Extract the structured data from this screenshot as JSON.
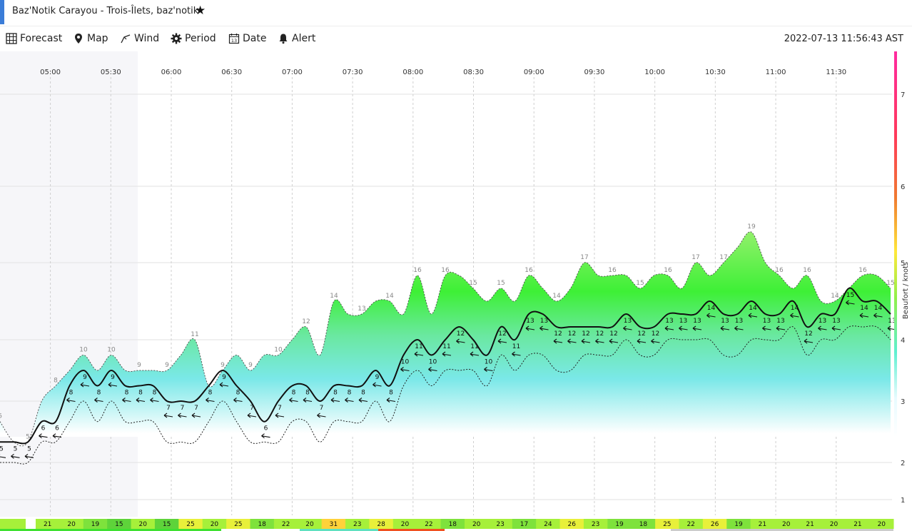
{
  "window": {
    "title": "Baz'Notik Carayou - Trois-Îlets, baz'notik",
    "star_icon": "star-icon"
  },
  "toolbar": {
    "items": [
      {
        "label": "Forecast",
        "icon": "grid-icon"
      },
      {
        "label": "Map",
        "icon": "map-pin-icon"
      },
      {
        "label": "Wind",
        "icon": "wind-icon"
      },
      {
        "label": "Period",
        "icon": "gear-icon"
      },
      {
        "label": "Date",
        "icon": "calendar-icon"
      },
      {
        "label": "Alert",
        "icon": "bell-icon"
      }
    ],
    "timestamp": "2022-07-13 11:56:43 AST"
  },
  "chart_data": {
    "type": "area",
    "time_labels": [
      "05:00",
      "05:30",
      "06:00",
      "06:30",
      "07:00",
      "07:30",
      "08:00",
      "08:30",
      "09:00",
      "09:30",
      "10:00",
      "10:30",
      "11:00",
      "11:30"
    ],
    "beaufort_scale": [
      "1",
      "2",
      "3",
      "4",
      "5",
      "6",
      "7"
    ],
    "axis_title": "Beaufort / knots",
    "x_start": "04:35",
    "x_end": "11:57",
    "night_shade_end": "05:40",
    "avg_knots": [
      5,
      5,
      5,
      6,
      6,
      8,
      9,
      8,
      9,
      8,
      8,
      8,
      7,
      7,
      7,
      8,
      9,
      8,
      7,
      6,
      7,
      8,
      8,
      7,
      8,
      8,
      8,
      9,
      8,
      10,
      11,
      10,
      11,
      12,
      11,
      10,
      12,
      11,
      13,
      13,
      12,
      12,
      12,
      12,
      12,
      13,
      12,
      12,
      13,
      13,
      13,
      14,
      13,
      13,
      14,
      13,
      13,
      14,
      12,
      13,
      13,
      15,
      14,
      14,
      13
    ],
    "gust_knots": [
      6,
      5,
      5,
      7,
      8,
      9,
      10,
      9,
      10,
      9,
      9,
      9,
      9,
      10,
      11,
      8,
      9,
      10,
      9,
      10,
      10,
      11,
      12,
      10,
      14,
      13,
      13,
      14,
      14,
      13,
      16,
      13,
      16,
      16,
      15,
      14,
      15,
      14,
      16,
      15,
      14,
      15,
      17,
      16,
      16,
      16,
      15,
      16,
      16,
      15,
      17,
      16,
      17,
      18,
      19,
      17,
      16,
      15,
      16,
      14,
      14,
      15,
      16,
      16,
      15
    ],
    "lull_knots": [
      4,
      4,
      4,
      5,
      5,
      6,
      7,
      6,
      7,
      6,
      6,
      6,
      5,
      5,
      5,
      6,
      7,
      6,
      5,
      5,
      5,
      6,
      6,
      5,
      6,
      6,
      6,
      7,
      6,
      8,
      9,
      8,
      9,
      9,
      9,
      8,
      10,
      9,
      10,
      10,
      9,
      9,
      10,
      10,
      10,
      11,
      10,
      10,
      11,
      11,
      11,
      11,
      10,
      10,
      11,
      11,
      11,
      12,
      10,
      11,
      11,
      12,
      12,
      12,
      11
    ],
    "gust_strip": [
      "21",
      "20",
      "19",
      "15",
      "20",
      "15",
      "25",
      "20",
      "25",
      "18",
      "22",
      "20",
      "31",
      "23",
      "28",
      "20",
      "22",
      "18",
      "20",
      "23",
      "17",
      "24",
      "26",
      "23",
      "19",
      "18",
      "25",
      "22",
      "26",
      "19",
      "21",
      "20",
      "21",
      "20",
      "21",
      "20"
    ],
    "strip_colors": [
      "#a6f03a",
      "#7ee23c",
      "#5ed33a",
      "#e8f03a",
      "#ffd23a",
      "#f09020"
    ]
  }
}
